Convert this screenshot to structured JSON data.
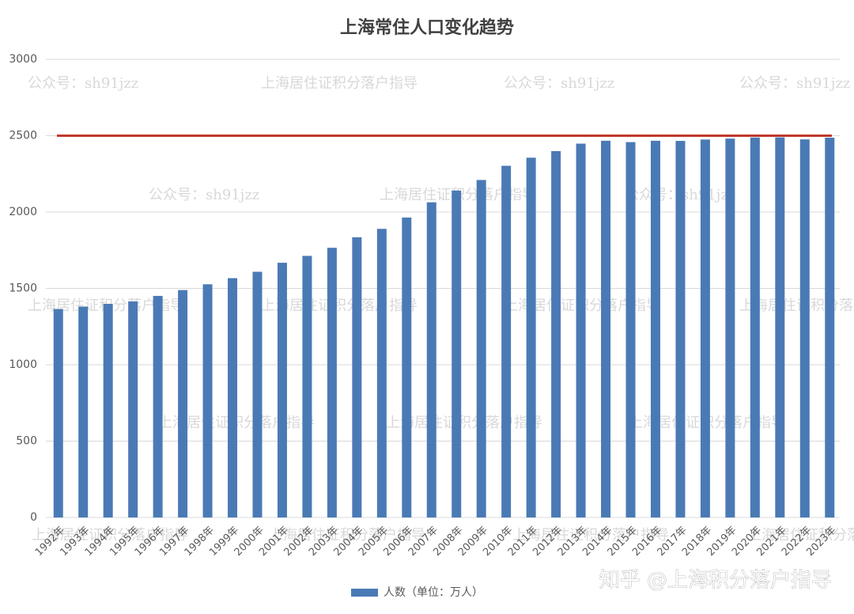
{
  "chart_data": {
    "type": "bar",
    "title": "上海常住人口变化趋势",
    "categories": [
      "1992年",
      "1993年",
      "1994年",
      "1995年",
      "1996年",
      "1997年",
      "1998年",
      "1999年",
      "2000年",
      "2001年",
      "2002年",
      "2003年",
      "2004年",
      "2005年",
      "2006年",
      "2007年",
      "2008年",
      "2009年",
      "2010年",
      "2011年",
      "2012年",
      "2013年",
      "2014年",
      "2015年",
      "2016年",
      "2017年",
      "2018年",
      "2019年",
      "2020年",
      "2021年",
      "2022年",
      "2023年"
    ],
    "series": [
      {
        "name": "人数（单位：万人）",
        "color": "#4a7ab5",
        "values": [
          1365,
          1381,
          1399,
          1415,
          1451,
          1489,
          1527,
          1567,
          1609,
          1668,
          1713,
          1766,
          1835,
          1890,
          1964,
          2064,
          2141,
          2210,
          2303,
          2356,
          2399,
          2448,
          2467,
          2458,
          2467,
          2466,
          2475,
          2481,
          2488,
          2489,
          2476,
          2487
        ]
      }
    ],
    "reference_line": {
      "value": 2500,
      "color": "#c0392b"
    },
    "ylim": [
      0,
      3000
    ],
    "yticks": [
      0,
      500,
      1000,
      1500,
      2000,
      2500,
      3000
    ],
    "grid": true,
    "legend": "bottom",
    "watermarks": [
      "公众号：sh91jzz",
      "上海居住证积分落户指导",
      "知乎 @上海积分落户指导"
    ]
  }
}
